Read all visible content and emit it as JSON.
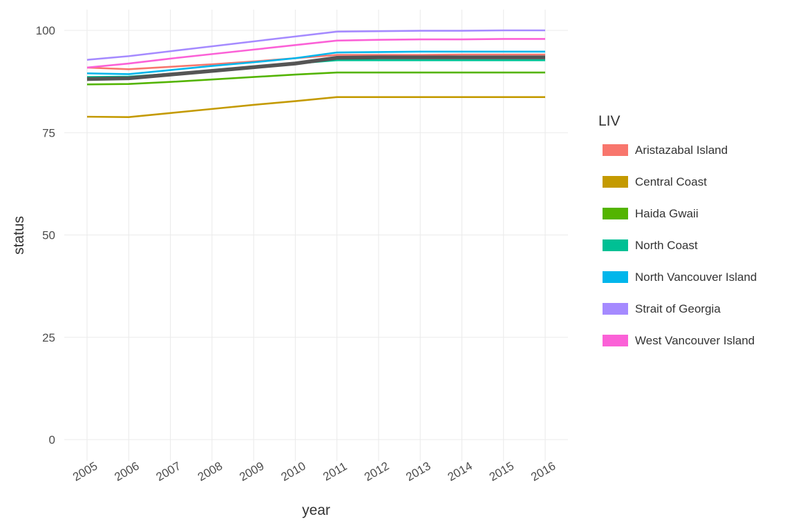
{
  "chart_data": {
    "type": "line",
    "xlabel": "year",
    "ylabel": "status",
    "x": [
      2005,
      2006,
      2007,
      2008,
      2009,
      2010,
      2011,
      2012,
      2013,
      2014,
      2015,
      2016
    ],
    "x_tick_labels": [
      "2005",
      "2006",
      "2007",
      "2008",
      "2009",
      "2010",
      "2011",
      "2012",
      "2013",
      "2014",
      "2015",
      "2016"
    ],
    "y_ticks": [
      0,
      25,
      50,
      75,
      100
    ],
    "y_tick_labels": [
      "0",
      "25",
      "50",
      "75",
      "100"
    ],
    "ylim": [
      0,
      100
    ],
    "grid": true,
    "legend_title": "LIV",
    "legend_position": "right",
    "series": [
      {
        "name": "Aristazabal Island",
        "color": "#F8766D",
        "values": [
          90.9,
          90.5,
          91.1,
          91.7,
          92.4,
          93.2,
          94.0,
          94.0,
          94.0,
          94.1,
          94.1,
          94.1
        ]
      },
      {
        "name": "Central Coast",
        "color": "#C49A00",
        "values": [
          78.9,
          78.8,
          79.8,
          80.8,
          81.8,
          82.7,
          83.7,
          83.7,
          83.7,
          83.7,
          83.7,
          83.7
        ]
      },
      {
        "name": "Haida Gwaii",
        "color": "#53B400",
        "values": [
          86.8,
          86.9,
          87.4,
          88.0,
          88.6,
          89.2,
          89.7,
          89.7,
          89.7,
          89.7,
          89.7,
          89.7
        ]
      },
      {
        "name": "North Coast",
        "color": "#00C094",
        "values": [
          88.6,
          88.7,
          89.4,
          90.2,
          91.1,
          91.9,
          92.7,
          92.7,
          92.7,
          92.7,
          92.7,
          92.7
        ]
      },
      {
        "name": "North Vancouver Island",
        "color": "#00B6EB",
        "values": [
          89.5,
          89.3,
          90.3,
          91.3,
          92.2,
          93.2,
          94.6,
          94.7,
          94.8,
          94.8,
          94.8,
          94.8
        ]
      },
      {
        "name": "Strait of Georgia",
        "color": "#A58AFF",
        "values": [
          92.8,
          93.7,
          94.9,
          96.1,
          97.3,
          98.5,
          99.7,
          99.8,
          99.9,
          99.9,
          100.0,
          100.0
        ]
      },
      {
        "name": "West Vancouver Island",
        "color": "#FB61D7",
        "values": [
          90.9,
          91.9,
          93.1,
          94.2,
          95.3,
          96.4,
          97.5,
          97.7,
          97.8,
          97.8,
          97.9,
          97.9
        ]
      },
      {
        "name": "",
        "color": "#555555",
        "values": [
          88.1,
          88.3,
          89.2,
          90.1,
          91.0,
          91.9,
          93.3,
          93.4,
          93.4,
          93.4,
          93.4,
          93.4
        ]
      }
    ]
  }
}
